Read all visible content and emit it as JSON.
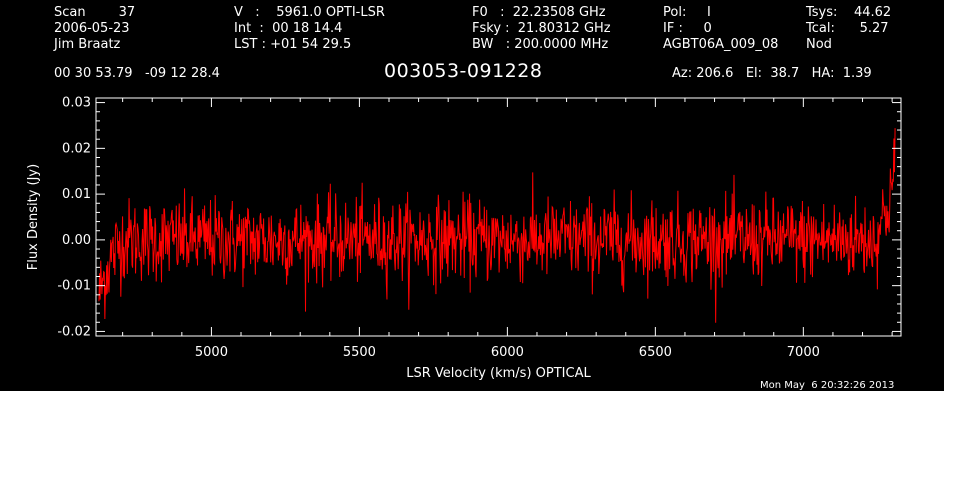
{
  "header": {
    "col1": [
      "Scan        37",
      "2006-05-23",
      "Jim Braatz"
    ],
    "col2": [
      "V   :    5961.0 OPTI-LSR",
      "Int  :  00 18 14.4",
      "LST : +01 54 29.5"
    ],
    "col3": [
      "F0   :  22.23508 GHz",
      "Fsky :  21.80312 GHz",
      "BW   : 200.0000 MHz"
    ],
    "col4": [
      "Pol:     I",
      "IF :     0",
      "AGBT06A_009_08"
    ],
    "col5": [
      "Tsys:    44.62",
      "Tcal:      5.27",
      "Nod"
    ],
    "coords": "00 30 53.79   -09 12 28.4",
    "source": "003053-091228",
    "azelha": "Az: 206.6   El:  38.7   HA:  1.39",
    "timestamp": "Mon May  6 20:32:26 2013"
  },
  "colors": {
    "background": "#000000",
    "axes": "#ffffff",
    "spectrum": "#ff0000"
  },
  "chart_data": {
    "type": "line",
    "title": "003053-091228",
    "xlabel": "LSR Velocity (km/s) OPTICAL",
    "ylabel": "Flux Density (Jy)",
    "xlim": [
      4610,
      7330
    ],
    "ylim": [
      -0.021,
      0.031
    ],
    "xticks": [
      5000,
      5500,
      6000,
      6500,
      7000
    ],
    "xtick_labels": [
      "5000",
      "5500",
      "6000",
      "6500",
      "7000"
    ],
    "yticks": [
      -0.02,
      -0.01,
      0.0,
      0.01,
      0.02,
      0.03
    ],
    "ytick_labels": [
      "-0.02",
      "-0.01",
      "0.00",
      "0.01",
      "0.02",
      "0.03"
    ],
    "grid": false,
    "series": [
      {
        "x_start": 4620,
        "x_end": 7310,
        "points": 1350,
        "baseline": 0.0,
        "noise_rms": 0.0045,
        "low_edge": {
          "x": [
            4620,
            4640,
            4660,
            4680,
            4700
          ],
          "y": [
            -0.012,
            -0.008,
            -0.004,
            -0.002,
            0.0
          ]
        },
        "high_edge": {
          "x": [
            7250,
            7280,
            7300,
            7310
          ],
          "y": [
            0.002,
            0.006,
            0.012,
            0.016
          ]
        }
      }
    ]
  }
}
